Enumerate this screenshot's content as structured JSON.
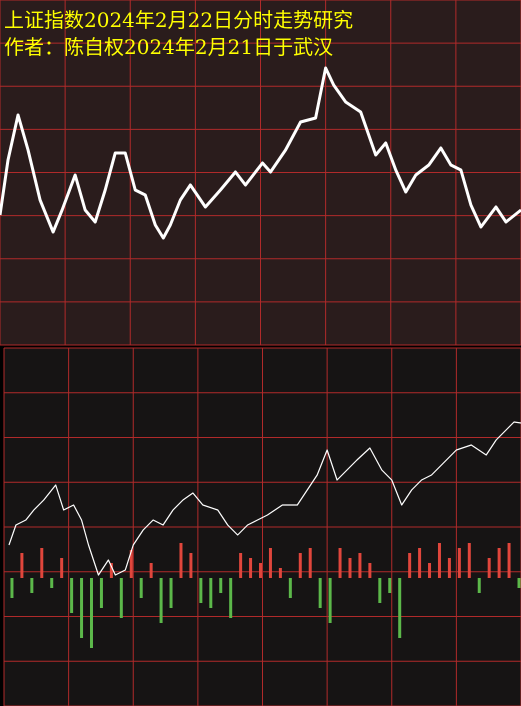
{
  "chart_data": [
    {
      "type": "line",
      "title": "上证指数2024年2月22日分时走势研究",
      "subtitle": "作者：陈自权2024年2月21日于武汉",
      "xlim": [
        0,
        520
      ],
      "ylim": [
        0,
        345
      ],
      "x": [
        0,
        8,
        18,
        28,
        40,
        53,
        62,
        75,
        85,
        95,
        105,
        115,
        125,
        135,
        145,
        155,
        163,
        170,
        180,
        190,
        205,
        220,
        235,
        245,
        262,
        270,
        285,
        300,
        315,
        325,
        333,
        345,
        360,
        375,
        385,
        395,
        405,
        415,
        428,
        440,
        450,
        460,
        470,
        480,
        495,
        505,
        520
      ],
      "series": [
        {
          "color": "#ffffff",
          "values": [
            130,
            185,
            230,
            195,
            145,
            113,
            135,
            170,
            135,
            123,
            155,
            192,
            192,
            155,
            150,
            120,
            107,
            120,
            145,
            160,
            138,
            155,
            173,
            160,
            182,
            173,
            195,
            223,
            227,
            277,
            260,
            243,
            233,
            190,
            202,
            175,
            153,
            170,
            180,
            197,
            180,
            175,
            140,
            118,
            138,
            123,
            135
          ]
        }
      ]
    },
    {
      "type": "bar",
      "xlim": [
        0,
        520
      ],
      "ylim": [
        -128,
        230
      ],
      "series": [
        {
          "type": "line",
          "color": "#ffffff",
          "x": [
            5,
            12,
            22,
            30,
            40,
            52,
            60,
            70,
            78,
            85,
            95,
            105,
            112,
            122,
            130,
            140,
            150,
            160,
            170,
            180,
            190,
            200,
            215,
            225,
            235,
            245,
            255,
            265,
            280,
            295,
            305,
            315,
            325,
            335,
            345,
            355,
            368,
            380,
            390,
            400,
            410,
            420,
            430,
            440,
            455,
            470,
            485,
            495,
            505,
            513,
            520
          ],
          "values": [
            33,
            53,
            58,
            68,
            78,
            93,
            68,
            73,
            58,
            33,
            3,
            18,
            3,
            8,
            33,
            48,
            58,
            53,
            68,
            78,
            85,
            73,
            68,
            53,
            43,
            53,
            58,
            63,
            73,
            73,
            88,
            103,
            128,
            98,
            108,
            118,
            130,
            108,
            98,
            73,
            88,
            98,
            103,
            113,
            128,
            133,
            123,
            138,
            148,
            156,
            155
          ]
        },
        {
          "type": "bar",
          "color": "#e0463c",
          "negative_color": "#5cb84a",
          "x": [
            8,
            18,
            28,
            38,
            48,
            58,
            68,
            78,
            88,
            98,
            108,
            118,
            128,
            138,
            148,
            158,
            168,
            178,
            188,
            198,
            208,
            218,
            228,
            238,
            248,
            258,
            268,
            278,
            288,
            298,
            308,
            318,
            328,
            338,
            348,
            358,
            368,
            378,
            388,
            398,
            408,
            418,
            428,
            438,
            448,
            458,
            468,
            478,
            488,
            498,
            508,
            518
          ],
          "values": [
            -20,
            25,
            -15,
            30,
            -10,
            20,
            -35,
            -60,
            -70,
            -30,
            15,
            -40,
            28,
            -20,
            15,
            -45,
            -30,
            35,
            25,
            -25,
            -30,
            -15,
            -40,
            25,
            20,
            15,
            30,
            10,
            -20,
            25,
            30,
            -30,
            -45,
            30,
            20,
            25,
            15,
            -25,
            -15,
            -60,
            25,
            30,
            15,
            35,
            20,
            30,
            35,
            -15,
            20,
            30,
            35,
            -10
          ]
        }
      ]
    }
  ]
}
